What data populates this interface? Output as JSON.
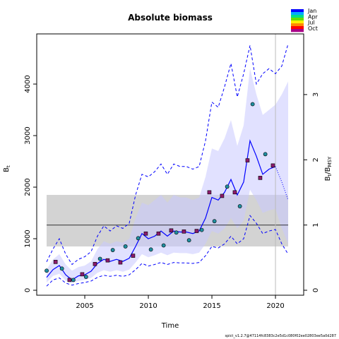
{
  "chart_data": {
    "type": "line",
    "title": "Absolute biomass",
    "xlabel": "Time",
    "ylabel": [
      "B",
      "t"
    ],
    "y2label": [
      "B",
      "t",
      "/B",
      "MSY"
    ],
    "footer": "spict_v1.2.7@47114fc8383c2e5d1c080f02ee02803ee5a0d287",
    "xlim": [
      2001.22,
      2022.22
    ],
    "xticks": [
      2005,
      2010,
      2015,
      2020
    ],
    "ylim": [
      -96,
      4973
    ],
    "yticks": [
      0,
      1000,
      2000,
      3000,
      4000
    ],
    "y2lim": [
      -0.076,
      3.93
    ],
    "y2ticks": [
      0,
      1,
      2,
      3
    ],
    "bmsy": 1264,
    "bmsy_ci": [
      850,
      1850
    ],
    "bmsy_x": [
      2002,
      2021
    ],
    "bmsy_color": "#d3d3d3",
    "vline": 2020,
    "x": [
      2002,
      2002.5,
      2003,
      2003.5,
      2004,
      2004.5,
      2005,
      2005.5,
      2006,
      2006.5,
      2007,
      2007.5,
      2008,
      2008.5,
      2009,
      2009.5,
      2010,
      2010.5,
      2011,
      2011.5,
      2012,
      2012.5,
      2013,
      2013.5,
      2014,
      2014.5,
      2015,
      2015.5,
      2016,
      2016.5,
      2017,
      2017.5,
      2018,
      2018.5,
      2019,
      2019.5,
      2020,
      2020.5,
      2021
    ],
    "estimate": [
      250,
      400,
      480,
      300,
      200,
      280,
      300,
      370,
      520,
      600,
      560,
      600,
      560,
      620,
      850,
      1100,
      1000,
      1050,
      1150,
      1050,
      1150,
      1130,
      1130,
      1100,
      1150,
      1400,
      1800,
      1750,
      1900,
      2150,
      1850,
      2100,
      2900,
      2600,
      2250,
      2350,
      2400,
      null,
      null
    ],
    "forecast": [
      null,
      null,
      null,
      null,
      null,
      null,
      null,
      null,
      null,
      null,
      null,
      null,
      null,
      null,
      null,
      null,
      null,
      null,
      null,
      null,
      null,
      null,
      null,
      null,
      null,
      null,
      null,
      null,
      null,
      null,
      null,
      null,
      null,
      null,
      null,
      null,
      2400,
      2100,
      1750
    ],
    "ci_upper": [
      400,
      600,
      700,
      500,
      380,
      450,
      480,
      560,
      800,
      950,
      900,
      950,
      920,
      1000,
      1400,
      1700,
      1650,
      1750,
      1850,
      1700,
      1850,
      1800,
      1800,
      1750,
      1800,
      2200,
      2750,
      2700,
      2950,
      3300,
      2800,
      3200,
      4300,
      3800,
      3400,
      3500,
      3600,
      3800,
      4050
    ],
    "ci_lower": [
      150,
      280,
      320,
      190,
      140,
      180,
      200,
      240,
      340,
      390,
      360,
      390,
      360,
      400,
      540,
      700,
      640,
      680,
      730,
      680,
      730,
      720,
      720,
      700,
      730,
      900,
      1150,
      1100,
      1200,
      1400,
      1200,
      1350,
      1950,
      1750,
      1500,
      1550,
      1580,
      1200,
      900
    ],
    "outer_upper": [
      550,
      800,
      1000,
      700,
      500,
      600,
      650,
      750,
      1050,
      1250,
      1150,
      1250,
      1200,
      1300,
      1850,
      2250,
      2200,
      2300,
      2450,
      2250,
      2450,
      2400,
      2400,
      2350,
      2400,
      2900,
      3650,
      3550,
      3950,
      4400,
      3750,
      4200,
      4750,
      4000,
      4200,
      4300,
      4200,
      4350,
      4780
    ],
    "outer_lower": [
      80,
      200,
      240,
      140,
      100,
      130,
      150,
      180,
      250,
      290,
      270,
      290,
      270,
      300,
      400,
      520,
      470,
      500,
      540,
      500,
      540,
      530,
      530,
      520,
      540,
      670,
      850,
      820,
      900,
      1050,
      900,
      1000,
      1450,
      1300,
      1100,
      1150,
      1180,
      900,
      700
    ],
    "line_color": "#0000ff",
    "band_color": "#c8c8ff",
    "index1": {
      "x": [
        2002,
        2003.2,
        2004.1,
        2005.1,
        2006.2,
        2007.2,
        2008.2,
        2009.2,
        2010.2,
        2011.2,
        2012.2,
        2013.2,
        2014.2,
        2015.2,
        2016.2,
        2017.2,
        2018.2,
        2019.2
      ],
      "values": [
        380,
        420,
        200,
        260,
        610,
        780,
        850,
        1010,
        790,
        870,
        1120,
        970,
        1170,
        1340,
        2010,
        1630,
        3610,
        2640
      ],
      "color": "#1f8fa0"
    },
    "index2": {
      "x": [
        2002.7,
        2003.8,
        2004.8,
        2005.8,
        2006.8,
        2007.8,
        2008.8,
        2009.8,
        2010.8,
        2011.8,
        2012.8,
        2013.8,
        2014.8,
        2015.8,
        2016.8,
        2017.8,
        2018.8,
        2019.8
      ],
      "values": [
        550,
        200,
        310,
        510,
        580,
        540,
        670,
        1100,
        1100,
        1160,
        1140,
        1150,
        1900,
        1830,
        1900,
        2520,
        2180,
        2420
      ],
      "color": "#8b1a6b"
    },
    "legend_labels": [
      "Jan",
      "Apr",
      "Jul",
      "Oct"
    ],
    "legend_colors": [
      "#0000ff",
      "#00aaff",
      "#00dd88",
      "#66dd00",
      "#ffee00",
      "#ff8800",
      "#ff0000",
      "#aa0088"
    ]
  }
}
